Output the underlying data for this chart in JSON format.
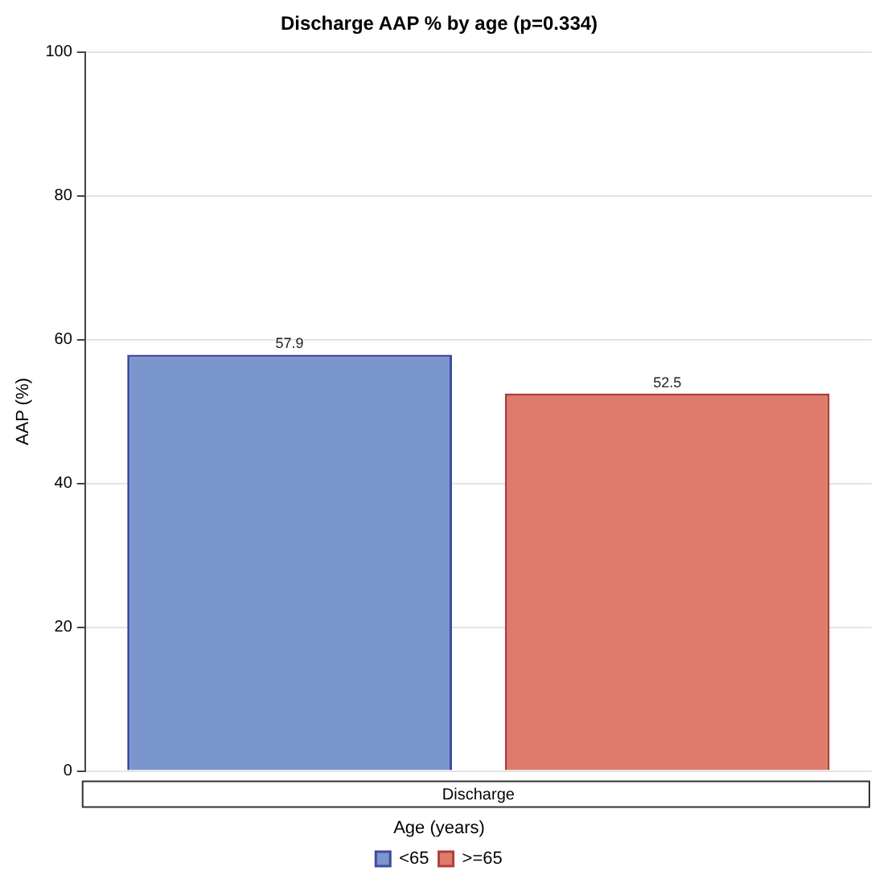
{
  "chart_data": {
    "type": "bar",
    "title": "Discharge AAP % by age (p=0.334)",
    "ylabel": "AAP (%)",
    "legend_title": "Age (years)",
    "categories": [
      "Discharge"
    ],
    "series": [
      {
        "name": "<65",
        "color": "#7b96cc",
        "values": [
          57.9
        ]
      },
      {
        "name": ">=65",
        "color": "#de7b6d",
        "values": [
          52.5
        ]
      }
    ],
    "ylim": [
      0,
      100
    ],
    "yticks": [
      0,
      20,
      40,
      60,
      80,
      100
    ],
    "grid": "y",
    "legend": "bottom",
    "data_labels": true
  }
}
